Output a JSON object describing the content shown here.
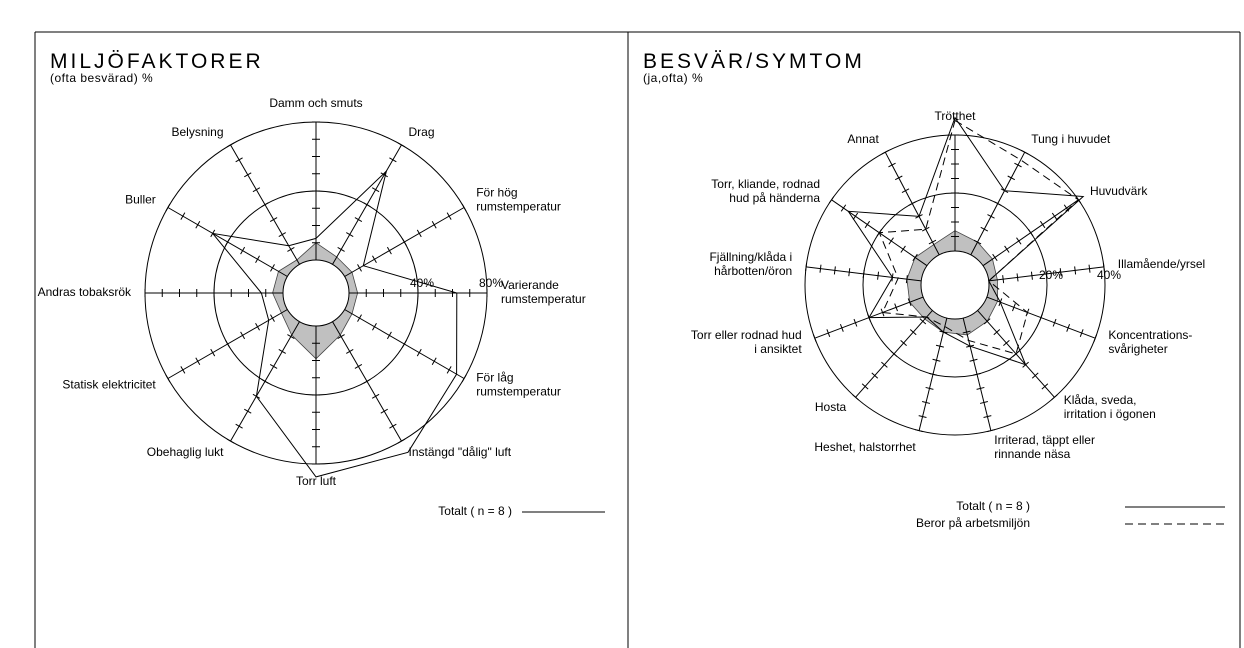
{
  "chart_data": [
    {
      "type": "radar",
      "title": "MILJÖFAKTORER",
      "subtitle": "(ofta besvärad) %",
      "categories": [
        "Damm och smuts",
        "Drag",
        "För hög\nrumstemperatur",
        "Varierande\nrumstemperatur",
        "För låg\nrumstemperatur",
        "Instängd \"dålig\" luft",
        "Torr luft",
        "Obehaglig lukt",
        "Statisk elektricitet",
        "Andras tobaksrök",
        "Buller",
        "Belysning"
      ],
      "rlim": [
        0,
        80
      ],
      "rticks": [
        10,
        20,
        30,
        {
          "value": 40,
          "label": "40%"
        },
        50,
        60,
        70,
        {
          "value": 80,
          "label": "80%"
        }
      ],
      "series": [
        {
          "name": "Totalt ( n = 8 )",
          "color": "#000000",
          "dash": false,
          "values": [
            12.5,
            62.5,
            12.5,
            62.5,
            75,
            87.5,
            87.5,
            50,
            12.5,
            12.5,
            50,
            12.5
          ]
        },
        {
          "color": "#c0c0c0",
          "fill": true,
          "values": [
            10,
            5,
            5,
            5,
            5,
            9,
            19,
            9,
            4,
            6,
            6,
            3
          ]
        }
      ]
    },
    {
      "type": "radar",
      "title": "BESVÄR/SYMTOM",
      "subtitle": "(ja,ofta) %",
      "categories": [
        "Trötthet",
        "Tung i huvudet",
        "Huvudvärk",
        "Illamående/yrsel",
        "Koncentrations-\nsvårigheter",
        "Klåda, sveda,\nirritation i ögonen",
        "Irriterad, täppt eller\nrinnande näsa",
        "Heshet, halstorrhet",
        "Hosta",
        "Torr eller rodnad hud\ni ansiktet",
        "Fjällning/klåda i\nhårbotten/öron",
        "Torr, kliande, rodnad\nhud på händerna",
        "Annat"
      ],
      "rlim": [
        0,
        40
      ],
      "rticks": [
        5,
        10,
        15,
        {
          "value": 20,
          "label": "20%"
        },
        25,
        30,
        35,
        {
          "value": 40,
          "label": "40%"
        }
      ],
      "series": [
        {
          "name": "Totalt ( n = 8 )",
          "color": "#000000",
          "dash": false,
          "values": [
            46,
            25,
            42,
            0,
            5,
            25,
            10,
            5,
            3,
            20,
            10,
            33,
            15
          ]
        },
        {
          "name": "Beror på arbetsmiljön",
          "color": "#000000",
          "dash": true,
          "values": [
            45,
            37,
            40,
            0,
            15,
            20,
            8,
            3,
            3,
            15,
            8,
            20,
            10
          ]
        },
        {
          "color": "#c0c0c0",
          "fill": true,
          "values": [
            7,
            5,
            4,
            3,
            4,
            5,
            6,
            5,
            4,
            5,
            5,
            5,
            4
          ]
        }
      ]
    }
  ]
}
